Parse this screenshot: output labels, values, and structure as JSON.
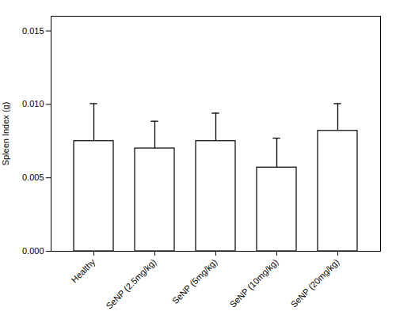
{
  "chart_data": {
    "type": "bar",
    "categories": [
      "Healthy",
      "SeNP (2.5mg/kg)",
      "SeNP (5mg/kg)",
      "SeNP (10mg/kg)",
      "SeNP (20mg/kg)"
    ],
    "values": [
      0.0075,
      0.007,
      0.0075,
      0.0057,
      0.0082
    ],
    "errors_up": [
      0.00255,
      0.00185,
      0.0019,
      0.002,
      0.00185
    ],
    "ylabel": "Spleen Index (g)",
    "color": "#ffffff",
    "ylim": [
      0,
      0.016
    ],
    "yticks": [
      {
        "value": 0.0,
        "label": "0.000"
      },
      {
        "value": 0.005,
        "label": "0.005"
      },
      {
        "value": 0.01,
        "label": "0.010"
      },
      {
        "value": 0.015,
        "label": "0.015"
      }
    ],
    "grid": false
  }
}
